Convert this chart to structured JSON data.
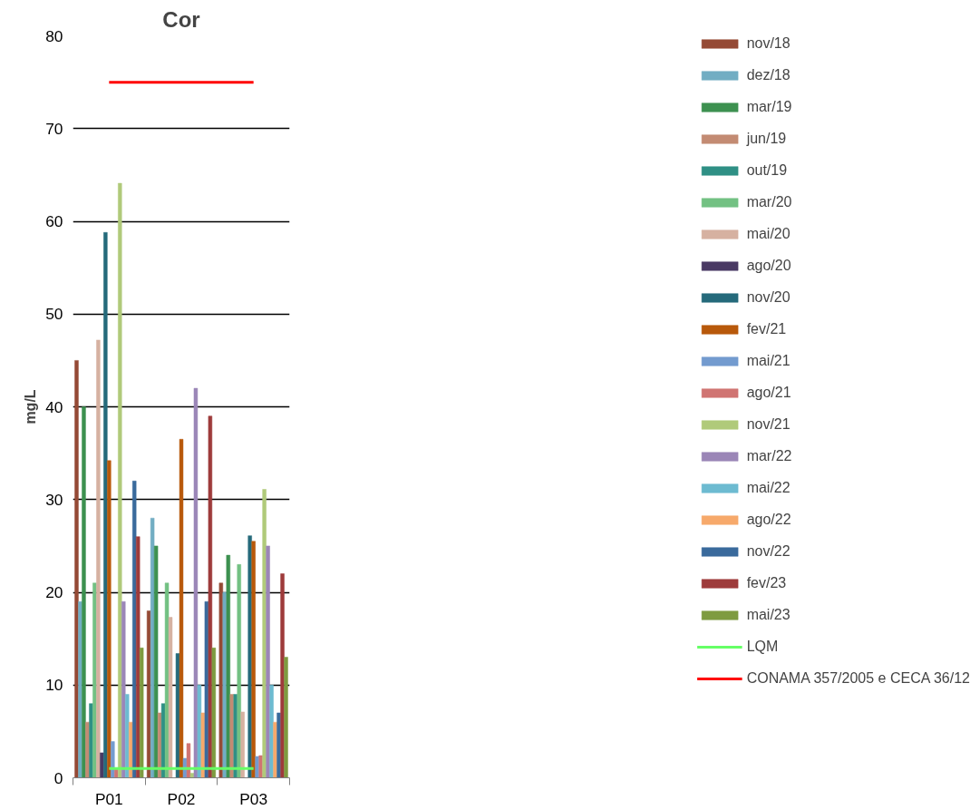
{
  "chart_data": {
    "type": "bar",
    "title": "Cor",
    "ylabel": "mg/L",
    "categories": [
      "P01",
      "P02",
      "P03"
    ],
    "ylim": [
      0,
      80
    ],
    "yticks": [
      0,
      10,
      20,
      30,
      40,
      50,
      60,
      70,
      80
    ],
    "grid": "y",
    "legend": "right",
    "series": [
      {
        "name": "nov/18",
        "color": "#954a35",
        "values": [
          45,
          18,
          21
        ]
      },
      {
        "name": "dez/18",
        "color": "#72adc3",
        "values": [
          19,
          28,
          20
        ]
      },
      {
        "name": "mar/19",
        "color": "#3d9150",
        "values": [
          40,
          25,
          24
        ]
      },
      {
        "name": "jun/19",
        "color": "#c38b73",
        "values": [
          6,
          7,
          9
        ]
      },
      {
        "name": "out/19",
        "color": "#2f9085",
        "values": [
          8,
          8,
          9
        ]
      },
      {
        "name": "mar/20",
        "color": "#73c183",
        "values": [
          21,
          21,
          23
        ]
      },
      {
        "name": "mai/20",
        "color": "#d6b1a1",
        "values": [
          47.2,
          17.3,
          7.1
        ]
      },
      {
        "name": "ago/20",
        "color": "#4a3a64",
        "values": [
          2.7,
          null,
          null
        ]
      },
      {
        "name": "nov/20",
        "color": "#256a7b",
        "values": [
          58.8,
          13.4,
          26.1
        ]
      },
      {
        "name": "fev/21",
        "color": "#b8590b",
        "values": [
          34.2,
          36.5,
          25.5
        ]
      },
      {
        "name": "mai/21",
        "color": "#739bcf",
        "values": [
          3.9,
          2.1,
          2.3
        ]
      },
      {
        "name": "ago/21",
        "color": "#d07472",
        "values": [
          1,
          3.7,
          2.4
        ]
      },
      {
        "name": "nov/21",
        "color": "#b0ca7a",
        "values": [
          64.1,
          0.5,
          31.1
        ]
      },
      {
        "name": "mar/22",
        "color": "#9b86b7",
        "values": [
          19,
          42,
          25
        ]
      },
      {
        "name": "mai/22",
        "color": "#6dbbd1",
        "values": [
          9,
          10,
          10
        ]
      },
      {
        "name": "ago/22",
        "color": "#f7a96b",
        "values": [
          6,
          7,
          6
        ]
      },
      {
        "name": "nov/22",
        "color": "#3a6a9c",
        "values": [
          32,
          19,
          7
        ]
      },
      {
        "name": "fev/23",
        "color": "#9e3b3b",
        "values": [
          26,
          39,
          22
        ]
      },
      {
        "name": "mai/23",
        "color": "#7e9b40",
        "values": [
          14,
          14,
          13
        ]
      },
      {
        "name": "LQM",
        "type": "line",
        "color": "#66ff66",
        "values": [
          1,
          1,
          1
        ]
      },
      {
        "name": "CONAMA 357/2005 e CECA 36/12",
        "type": "line",
        "color": "#ff0000",
        "values": [
          75,
          75,
          75
        ]
      }
    ]
  }
}
